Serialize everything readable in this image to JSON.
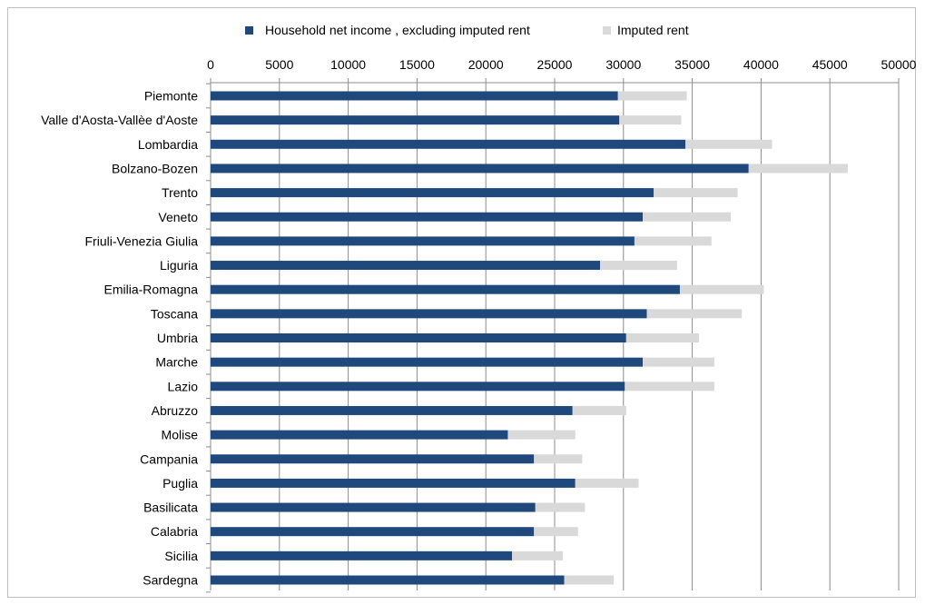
{
  "chart_data": {
    "type": "bar",
    "orientation": "horizontal",
    "stacked": true,
    "categories": [
      "Piemonte",
      "Valle d'Aosta-Vallèe d'Aoste",
      "Lombardia",
      "Bolzano-Bozen",
      "Trento",
      "Veneto",
      "Friuli-Venezia Giulia",
      "Liguria",
      "Emilia-Romagna",
      "Toscana",
      "Umbria",
      "Marche",
      "Lazio",
      "Abruzzo",
      "Molise",
      "Campania",
      "Puglia",
      "Basilicata",
      "Calabria",
      "Sicilia",
      "Sardegna"
    ],
    "series": [
      {
        "name": "Household net income , excluding imputed rent",
        "color": "#1f497d",
        "values": [
          29600,
          29700,
          34500,
          39100,
          32200,
          31400,
          30800,
          28300,
          34100,
          31700,
          30200,
          31400,
          30100,
          26300,
          21600,
          23500,
          26500,
          23600,
          23500,
          21900,
          25700
        ]
      },
      {
        "name": "Imputed rent",
        "color": "#d9d9d9",
        "values": [
          5000,
          4500,
          6300,
          7200,
          6100,
          6400,
          5600,
          5600,
          6100,
          6900,
          5300,
          5200,
          6500,
          3900,
          4900,
          3500,
          4600,
          3600,
          3200,
          3700,
          3600
        ]
      }
    ],
    "xlim": [
      0,
      50000
    ],
    "xticks": [
      0,
      5000,
      10000,
      15000,
      20000,
      25000,
      30000,
      35000,
      40000,
      45000,
      50000
    ],
    "title": "",
    "xlabel": "",
    "ylabel": "",
    "grid": "vertical",
    "legend": "top",
    "axis_position": "top"
  }
}
